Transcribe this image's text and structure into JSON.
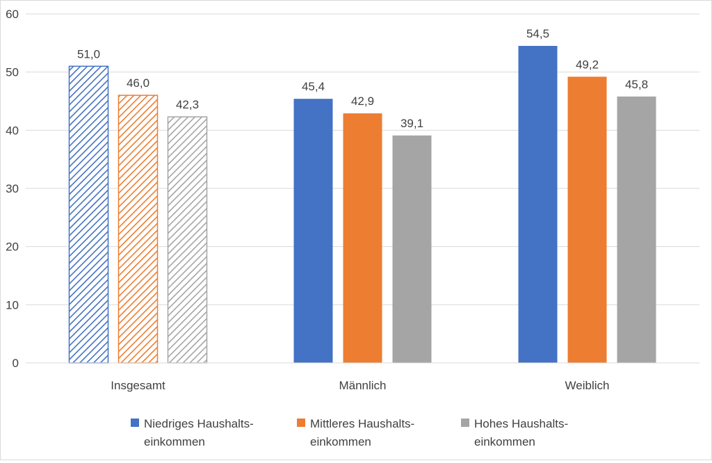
{
  "chart_data": {
    "type": "bar",
    "categories": [
      "Insgesamt",
      "Männlich",
      "Weiblich"
    ],
    "series": [
      {
        "name": "Niedriges Haushalts-einkommen",
        "name_lines": [
          "Niedriges Haushalts-",
          "einkommen"
        ],
        "values": [
          51.0,
          45.4,
          54.5
        ],
        "labels": [
          "51,0",
          "45,4",
          "54,5"
        ],
        "color": "#4472c4"
      },
      {
        "name": "Mittleres Haushalts-einkommen",
        "name_lines": [
          "Mittleres Haushalts-",
          "einkommen"
        ],
        "values": [
          46.0,
          42.9,
          49.2
        ],
        "labels": [
          "46,0",
          "42,9",
          "49,2"
        ],
        "color": "#ed7d31"
      },
      {
        "name": "Hohes Haushalts-einkommen",
        "name_lines": [
          "Hohes Haushalts-",
          "einkommen"
        ],
        "values": [
          42.3,
          39.1,
          45.8
        ],
        "labels": [
          "42,3",
          "39,1",
          "45,8"
        ],
        "color": "#a5a5a5"
      }
    ],
    "hatched_categories": [
      "Insgesamt"
    ],
    "ylim": [
      0,
      60
    ],
    "yticks": [
      0,
      10,
      20,
      30,
      40,
      50,
      60
    ],
    "title": "",
    "xlabel": "",
    "ylabel": "",
    "grid": "horizontal",
    "legend_position": "bottom"
  }
}
